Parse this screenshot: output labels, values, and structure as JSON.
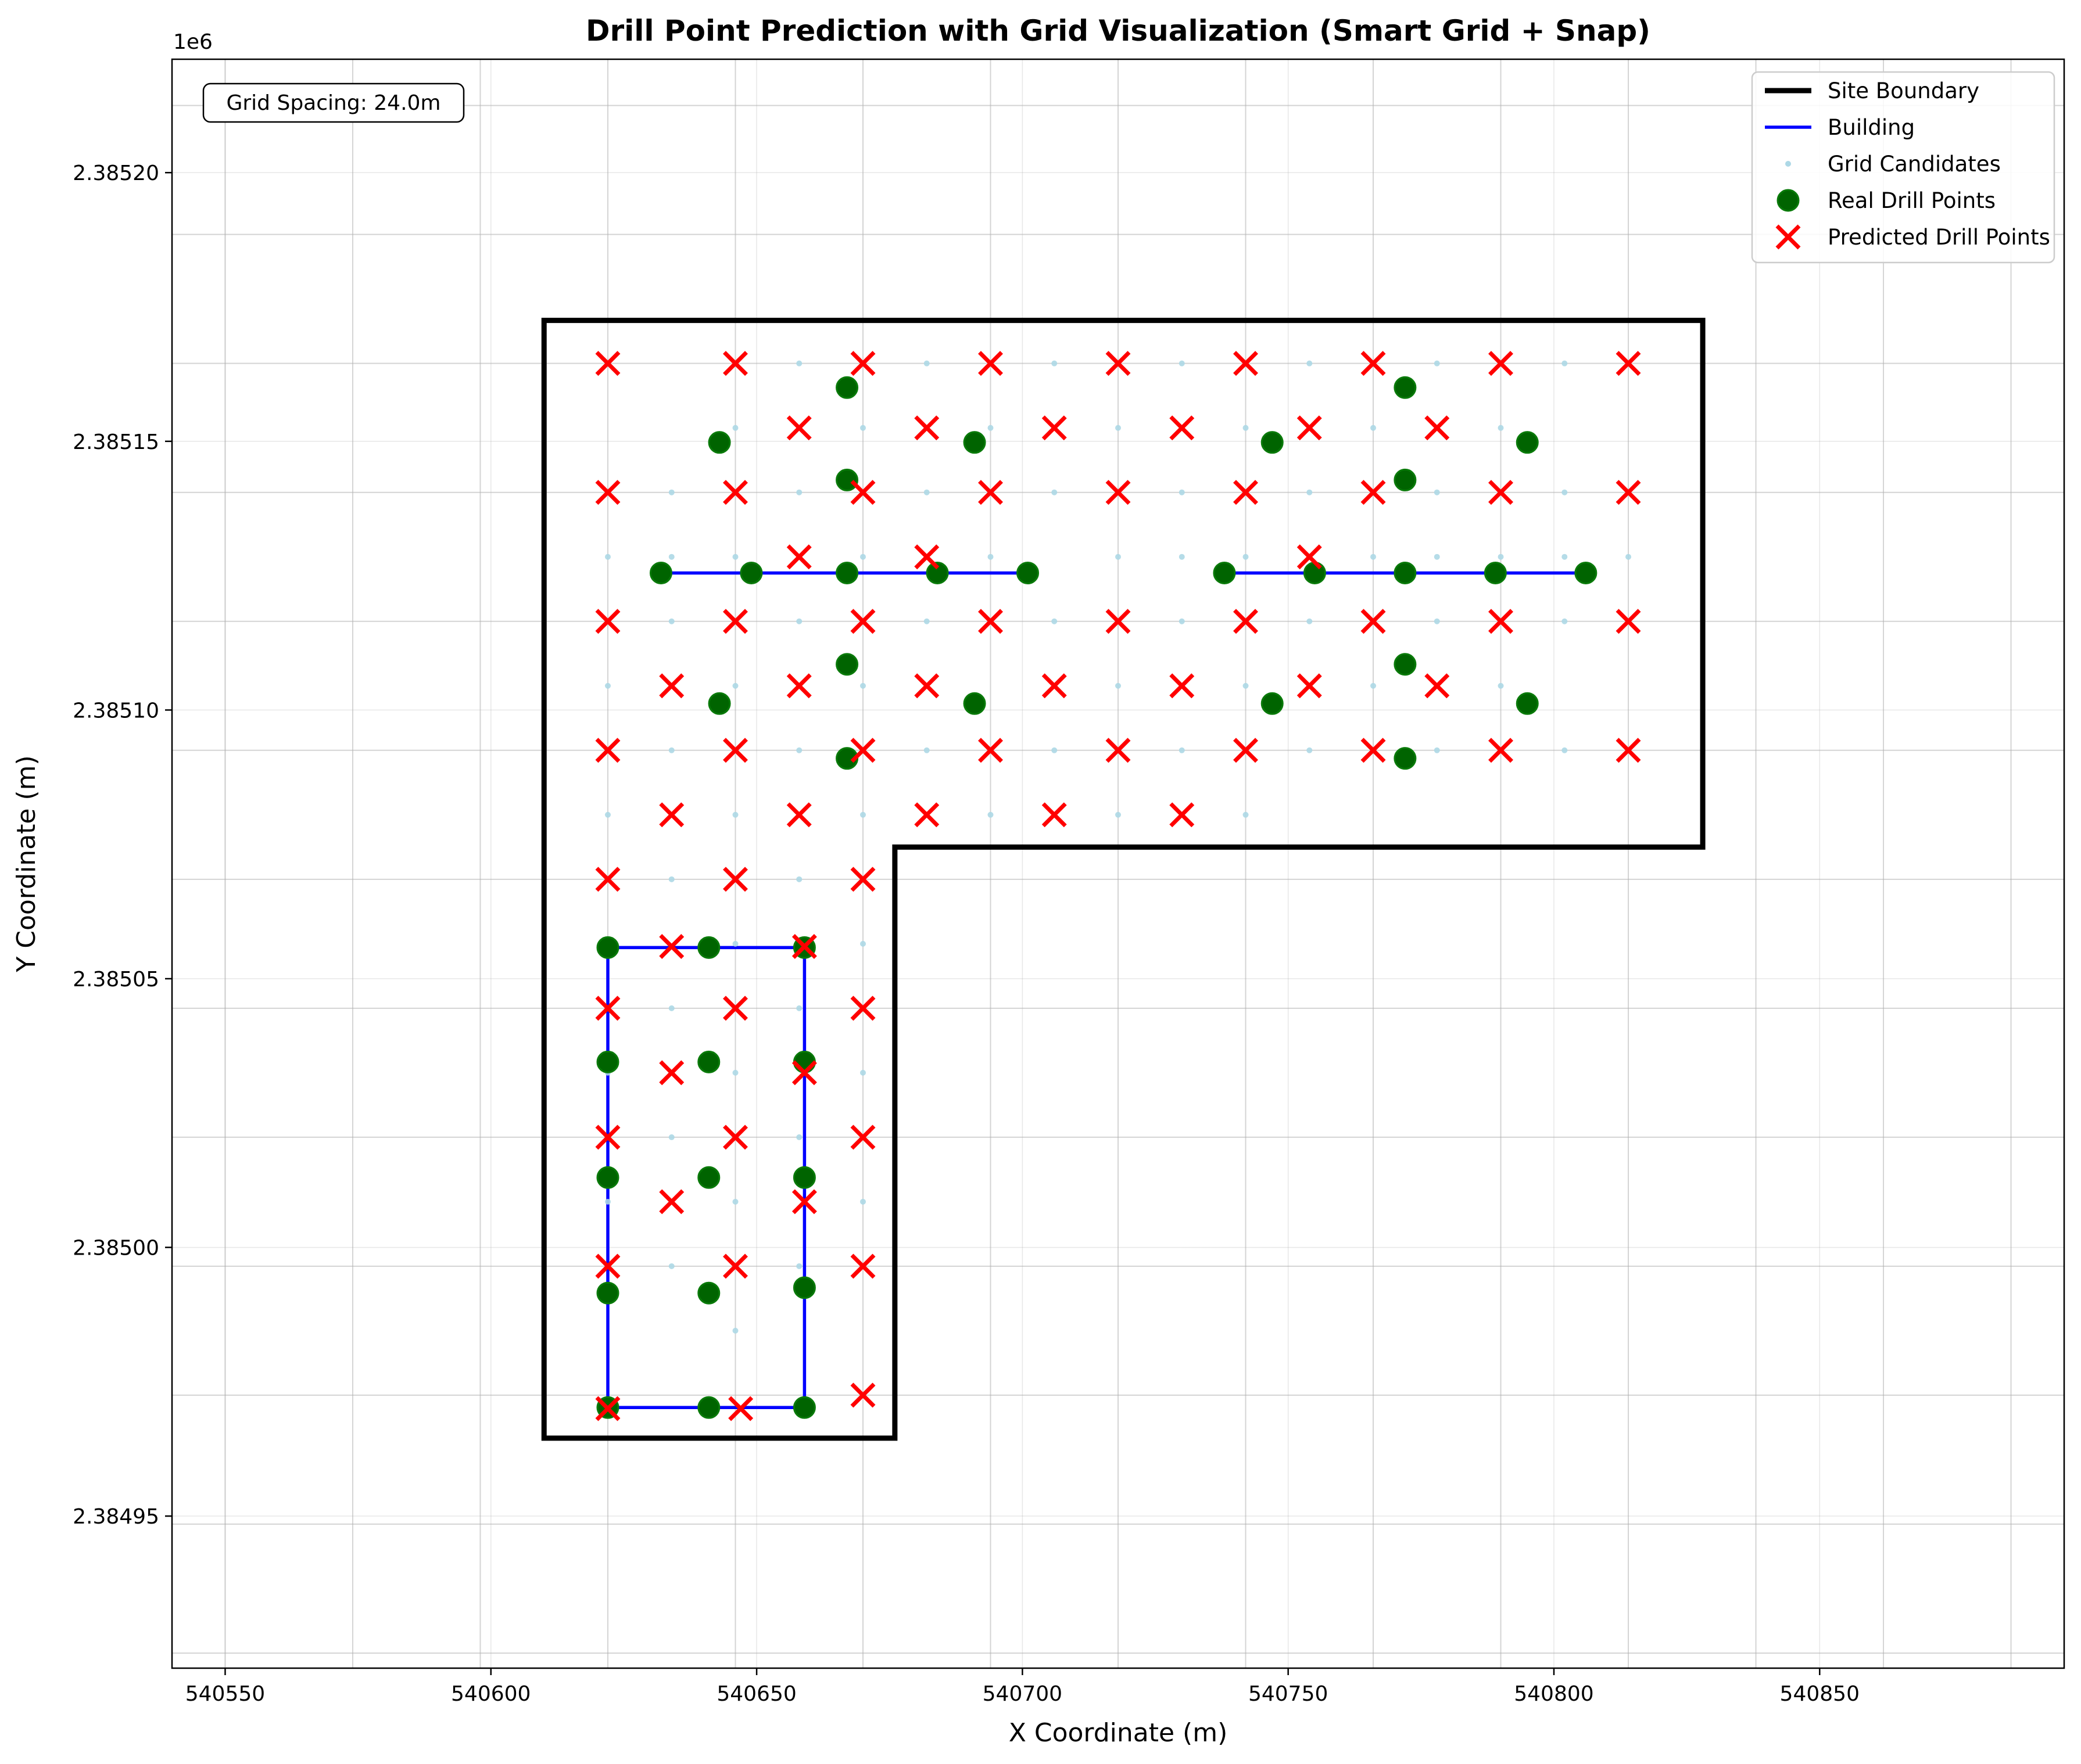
{
  "chart_data": {
    "type": "scatter",
    "title": "Drill Point Prediction with Grid Visualization (Smart Grid + Snap)",
    "xlabel": "X Coordinate (m)",
    "ylabel": "Y Coordinate (m)",
    "y_offset_label": "1e6",
    "y_offset": 1000000,
    "xlim": [
      540540,
      540896
    ],
    "ylim": [
      2.3849217,
      2.3852211
    ],
    "x_ticks": [
      540550,
      540600,
      540650,
      540700,
      540750,
      540800,
      540850
    ],
    "x_tick_labels": [
      "540550",
      "540600",
      "540650",
      "540700",
      "540750",
      "540800",
      "540850"
    ],
    "y_ticks": [
      2.38495,
      2.385,
      2.38505,
      2.3851,
      2.38515,
      2.3852
    ],
    "y_tick_labels": [
      "2.38495",
      "2.38500",
      "2.38505",
      "2.38510",
      "2.38515",
      "2.38520"
    ],
    "grid": true,
    "grid_lines_x": [
      540550,
      540574,
      540598,
      540622,
      540646,
      540670,
      540694,
      540718,
      540742,
      540766,
      540790,
      540814,
      540838,
      540862,
      540886
    ],
    "grid_lines_y": [
      2384924.5,
      2384948.5,
      2384972.5,
      2384996.5,
      2385020.5,
      2385044.5,
      2385068.5,
      2385092.5,
      2385116.5,
      2385140.5,
      2385164.5,
      2385188.5,
      2385212.5
    ],
    "annotation": "Grid Spacing: 24.0m",
    "legend_position": "upper right",
    "legend": [
      {
        "label": "Site Boundary",
        "kind": "line",
        "color": "#000000"
      },
      {
        "label": "Building",
        "kind": "line",
        "color": "#0000ff"
      },
      {
        "label": "Grid Candidates",
        "kind": "dot",
        "color": "#add8e6"
      },
      {
        "label": "Real Drill Points",
        "kind": "circle",
        "color": "#006400"
      },
      {
        "label": "Predicted Drill Points",
        "kind": "cross",
        "color": "#ff0000"
      }
    ],
    "series": [
      {
        "name": "Site Boundary",
        "kind": "polygon",
        "color": "#000000",
        "points": [
          [
            540610,
            2384964.5
          ],
          [
            540676,
            2384964.5
          ],
          [
            540676,
            2385074.5
          ],
          [
            540828,
            2385074.5
          ],
          [
            540828,
            2385172.5
          ],
          [
            540610,
            2385172.5
          ]
        ]
      },
      {
        "name": "Building",
        "kind": "lines",
        "color": "#0000ff",
        "segments": [
          [
            [
              540622,
              2384970.2
            ],
            [
              540659,
              2384970.2
            ],
            [
              540659,
              2385055.8
            ],
            [
              540622,
              2385055.8
            ],
            [
              540622,
              2384970.2
            ]
          ],
          [
            [
              540632,
              2385125.5
            ],
            [
              540701,
              2385125.5
            ]
          ],
          [
            [
              540738,
              2385125.5
            ],
            [
              540806,
              2385125.5
            ]
          ]
        ]
      },
      {
        "name": "Grid Candidates",
        "kind": "dots",
        "color": "#add8e6",
        "points": [
          [
            540658,
            2385164.5
          ],
          [
            540682,
            2385164.5
          ],
          [
            540706,
            2385164.5
          ],
          [
            540730,
            2385164.5
          ],
          [
            540754,
            2385164.5
          ],
          [
            540778,
            2385164.5
          ],
          [
            540802,
            2385164.5
          ],
          [
            540646,
            2385152.5
          ],
          [
            540670,
            2385152.5
          ],
          [
            540694,
            2385152.5
          ],
          [
            540718,
            2385152.5
          ],
          [
            540742,
            2385152.5
          ],
          [
            540766,
            2385152.5
          ],
          [
            540790,
            2385152.5
          ],
          [
            540634,
            2385140.5
          ],
          [
            540658,
            2385140.5
          ],
          [
            540682,
            2385140.5
          ],
          [
            540706,
            2385140.5
          ],
          [
            540730,
            2385140.5
          ],
          [
            540754,
            2385140.5
          ],
          [
            540778,
            2385140.5
          ],
          [
            540802,
            2385140.5
          ],
          [
            540622,
            2385128.5
          ],
          [
            540634,
            2385128.5
          ],
          [
            540646,
            2385128.5
          ],
          [
            540658,
            2385128.5
          ],
          [
            540670,
            2385128.5
          ],
          [
            540682,
            2385128.5
          ],
          [
            540694,
            2385128.5
          ],
          [
            540718,
            2385128.5
          ],
          [
            540730,
            2385128.5
          ],
          [
            540742,
            2385128.5
          ],
          [
            540754,
            2385128.5
          ],
          [
            540766,
            2385128.5
          ],
          [
            540778,
            2385128.5
          ],
          [
            540790,
            2385128.5
          ],
          [
            540802,
            2385128.5
          ],
          [
            540814,
            2385128.5
          ],
          [
            540634,
            2385116.5
          ],
          [
            540658,
            2385116.5
          ],
          [
            540682,
            2385116.5
          ],
          [
            540706,
            2385116.5
          ],
          [
            540730,
            2385116.5
          ],
          [
            540754,
            2385116.5
          ],
          [
            540778,
            2385116.5
          ],
          [
            540802,
            2385116.5
          ],
          [
            540622,
            2385104.5
          ],
          [
            540646,
            2385104.5
          ],
          [
            540670,
            2385104.5
          ],
          [
            540718,
            2385104.5
          ],
          [
            540742,
            2385104.5
          ],
          [
            540766,
            2385104.5
          ],
          [
            540790,
            2385104.5
          ],
          [
            540634,
            2385092.5
          ],
          [
            540658,
            2385092.5
          ],
          [
            540682,
            2385092.5
          ],
          [
            540706,
            2385092.5
          ],
          [
            540730,
            2385092.5
          ],
          [
            540754,
            2385092.5
          ],
          [
            540778,
            2385092.5
          ],
          [
            540802,
            2385092.5
          ],
          [
            540622,
            2385080.5
          ],
          [
            540646,
            2385080.5
          ],
          [
            540670,
            2385080.5
          ],
          [
            540694,
            2385080.5
          ],
          [
            540718,
            2385080.5
          ],
          [
            540742,
            2385080.5
          ],
          [
            540634,
            2385068.5
          ],
          [
            540658,
            2385068.5
          ],
          [
            540622,
            2385056.5
          ],
          [
            540646,
            2385056.5
          ],
          [
            540670,
            2385056.5
          ],
          [
            540634,
            2385044.5
          ],
          [
            540658,
            2385044.5
          ],
          [
            540622,
            2385032.5
          ],
          [
            540646,
            2385032.5
          ],
          [
            540670,
            2385032.5
          ],
          [
            540634,
            2385020.5
          ],
          [
            540658,
            2385020.5
          ],
          [
            540622,
            2385008.5
          ],
          [
            540646,
            2385008.5
          ],
          [
            540670,
            2385008.5
          ],
          [
            540634,
            2384996.5
          ],
          [
            540658,
            2384996.5
          ],
          [
            540646,
            2384984.5
          ]
        ]
      },
      {
        "name": "Real Drill Points",
        "kind": "circles",
        "color": "#006400",
        "points": [
          [
            540667,
            2385160
          ],
          [
            540772,
            2385160
          ],
          [
            540643,
            2385149.8
          ],
          [
            540691,
            2385149.8
          ],
          [
            540747,
            2385149.8
          ],
          [
            540795,
            2385149.8
          ],
          [
            540667,
            2385142.8
          ],
          [
            540772,
            2385142.8
          ],
          [
            540632,
            2385125.5
          ],
          [
            540649,
            2385125.5
          ],
          [
            540667,
            2385125.5
          ],
          [
            540684,
            2385125.5
          ],
          [
            540701,
            2385125.5
          ],
          [
            540738,
            2385125.5
          ],
          [
            540755,
            2385125.5
          ],
          [
            540772,
            2385125.5
          ],
          [
            540789,
            2385125.5
          ],
          [
            540806,
            2385125.5
          ],
          [
            540667,
            2385108.5
          ],
          [
            540772,
            2385108.5
          ],
          [
            540643,
            2385101.2
          ],
          [
            540691,
            2385101.2
          ],
          [
            540747,
            2385101.2
          ],
          [
            540795,
            2385101.2
          ],
          [
            540667,
            2385091
          ],
          [
            540772,
            2385091
          ],
          [
            540622,
            2385055.8
          ],
          [
            540641,
            2385055.8
          ],
          [
            540659,
            2385055.8
          ],
          [
            540622,
            2385034.5
          ],
          [
            540641,
            2385034.5
          ],
          [
            540659,
            2385034.5
          ],
          [
            540622,
            2385013
          ],
          [
            540641,
            2385013
          ],
          [
            540659,
            2385013
          ],
          [
            540622,
            2384991.5
          ],
          [
            540641,
            2384991.5
          ],
          [
            540659,
            2384992.5
          ],
          [
            540622,
            2384970.2
          ],
          [
            540641,
            2384970.2
          ],
          [
            540659,
            2384970.2
          ]
        ]
      },
      {
        "name": "Predicted Drill Points",
        "kind": "crosses",
        "color": "#ff0000",
        "points": [
          [
            540622,
            2385164.5
          ],
          [
            540646,
            2385164.5
          ],
          [
            540670,
            2385164.5
          ],
          [
            540694,
            2385164.5
          ],
          [
            540718,
            2385164.5
          ],
          [
            540742,
            2385164.5
          ],
          [
            540766,
            2385164.5
          ],
          [
            540790,
            2385164.5
          ],
          [
            540814,
            2385164.5
          ],
          [
            540658,
            2385152.5
          ],
          [
            540682,
            2385152.5
          ],
          [
            540706,
            2385152.5
          ],
          [
            540730,
            2385152.5
          ],
          [
            540754,
            2385152.5
          ],
          [
            540778,
            2385152.5
          ],
          [
            540622,
            2385140.5
          ],
          [
            540646,
            2385140.5
          ],
          [
            540670,
            2385140.5
          ],
          [
            540694,
            2385140.5
          ],
          [
            540718,
            2385140.5
          ],
          [
            540742,
            2385140.5
          ],
          [
            540766,
            2385140.5
          ],
          [
            540790,
            2385140.5
          ],
          [
            540814,
            2385140.5
          ],
          [
            540658,
            2385128.5
          ],
          [
            540682,
            2385128.5
          ],
          [
            540754,
            2385128.5
          ],
          [
            540622,
            2385116.5
          ],
          [
            540646,
            2385116.5
          ],
          [
            540670,
            2385116.5
          ],
          [
            540694,
            2385116.5
          ],
          [
            540718,
            2385116.5
          ],
          [
            540742,
            2385116.5
          ],
          [
            540766,
            2385116.5
          ],
          [
            540790,
            2385116.5
          ],
          [
            540814,
            2385116.5
          ],
          [
            540634,
            2385104.5
          ],
          [
            540658,
            2385104.5
          ],
          [
            540682,
            2385104.5
          ],
          [
            540706,
            2385104.5
          ],
          [
            540730,
            2385104.5
          ],
          [
            540754,
            2385104.5
          ],
          [
            540778,
            2385104.5
          ],
          [
            540622,
            2385092.5
          ],
          [
            540646,
            2385092.5
          ],
          [
            540670,
            2385092.5
          ],
          [
            540694,
            2385092.5
          ],
          [
            540718,
            2385092.5
          ],
          [
            540742,
            2385092.5
          ],
          [
            540766,
            2385092.5
          ],
          [
            540790,
            2385092.5
          ],
          [
            540814,
            2385092.5
          ],
          [
            540634,
            2385080.5
          ],
          [
            540658,
            2385080.5
          ],
          [
            540682,
            2385080.5
          ],
          [
            540706,
            2385080.5
          ],
          [
            540730,
            2385080.5
          ],
          [
            540622,
            2385068.5
          ],
          [
            540646,
            2385068.5
          ],
          [
            540670,
            2385068.5
          ],
          [
            540634,
            2385056
          ],
          [
            540659,
            2385056
          ],
          [
            540622,
            2385044.5
          ],
          [
            540646,
            2385044.5
          ],
          [
            540670,
            2385044.5
          ],
          [
            540634,
            2385032.5
          ],
          [
            540659,
            2385032.5
          ],
          [
            540622,
            2385020.5
          ],
          [
            540646,
            2385020.5
          ],
          [
            540670,
            2385020.5
          ],
          [
            540634,
            2385008.5
          ],
          [
            540659,
            2385008.5
          ],
          [
            540622,
            2384996.5
          ],
          [
            540646,
            2384996.5
          ],
          [
            540670,
            2384996.5
          ],
          [
            540670,
            2384972.5
          ],
          [
            540622,
            2384970
          ],
          [
            540647,
            2384970
          ]
        ]
      }
    ]
  }
}
